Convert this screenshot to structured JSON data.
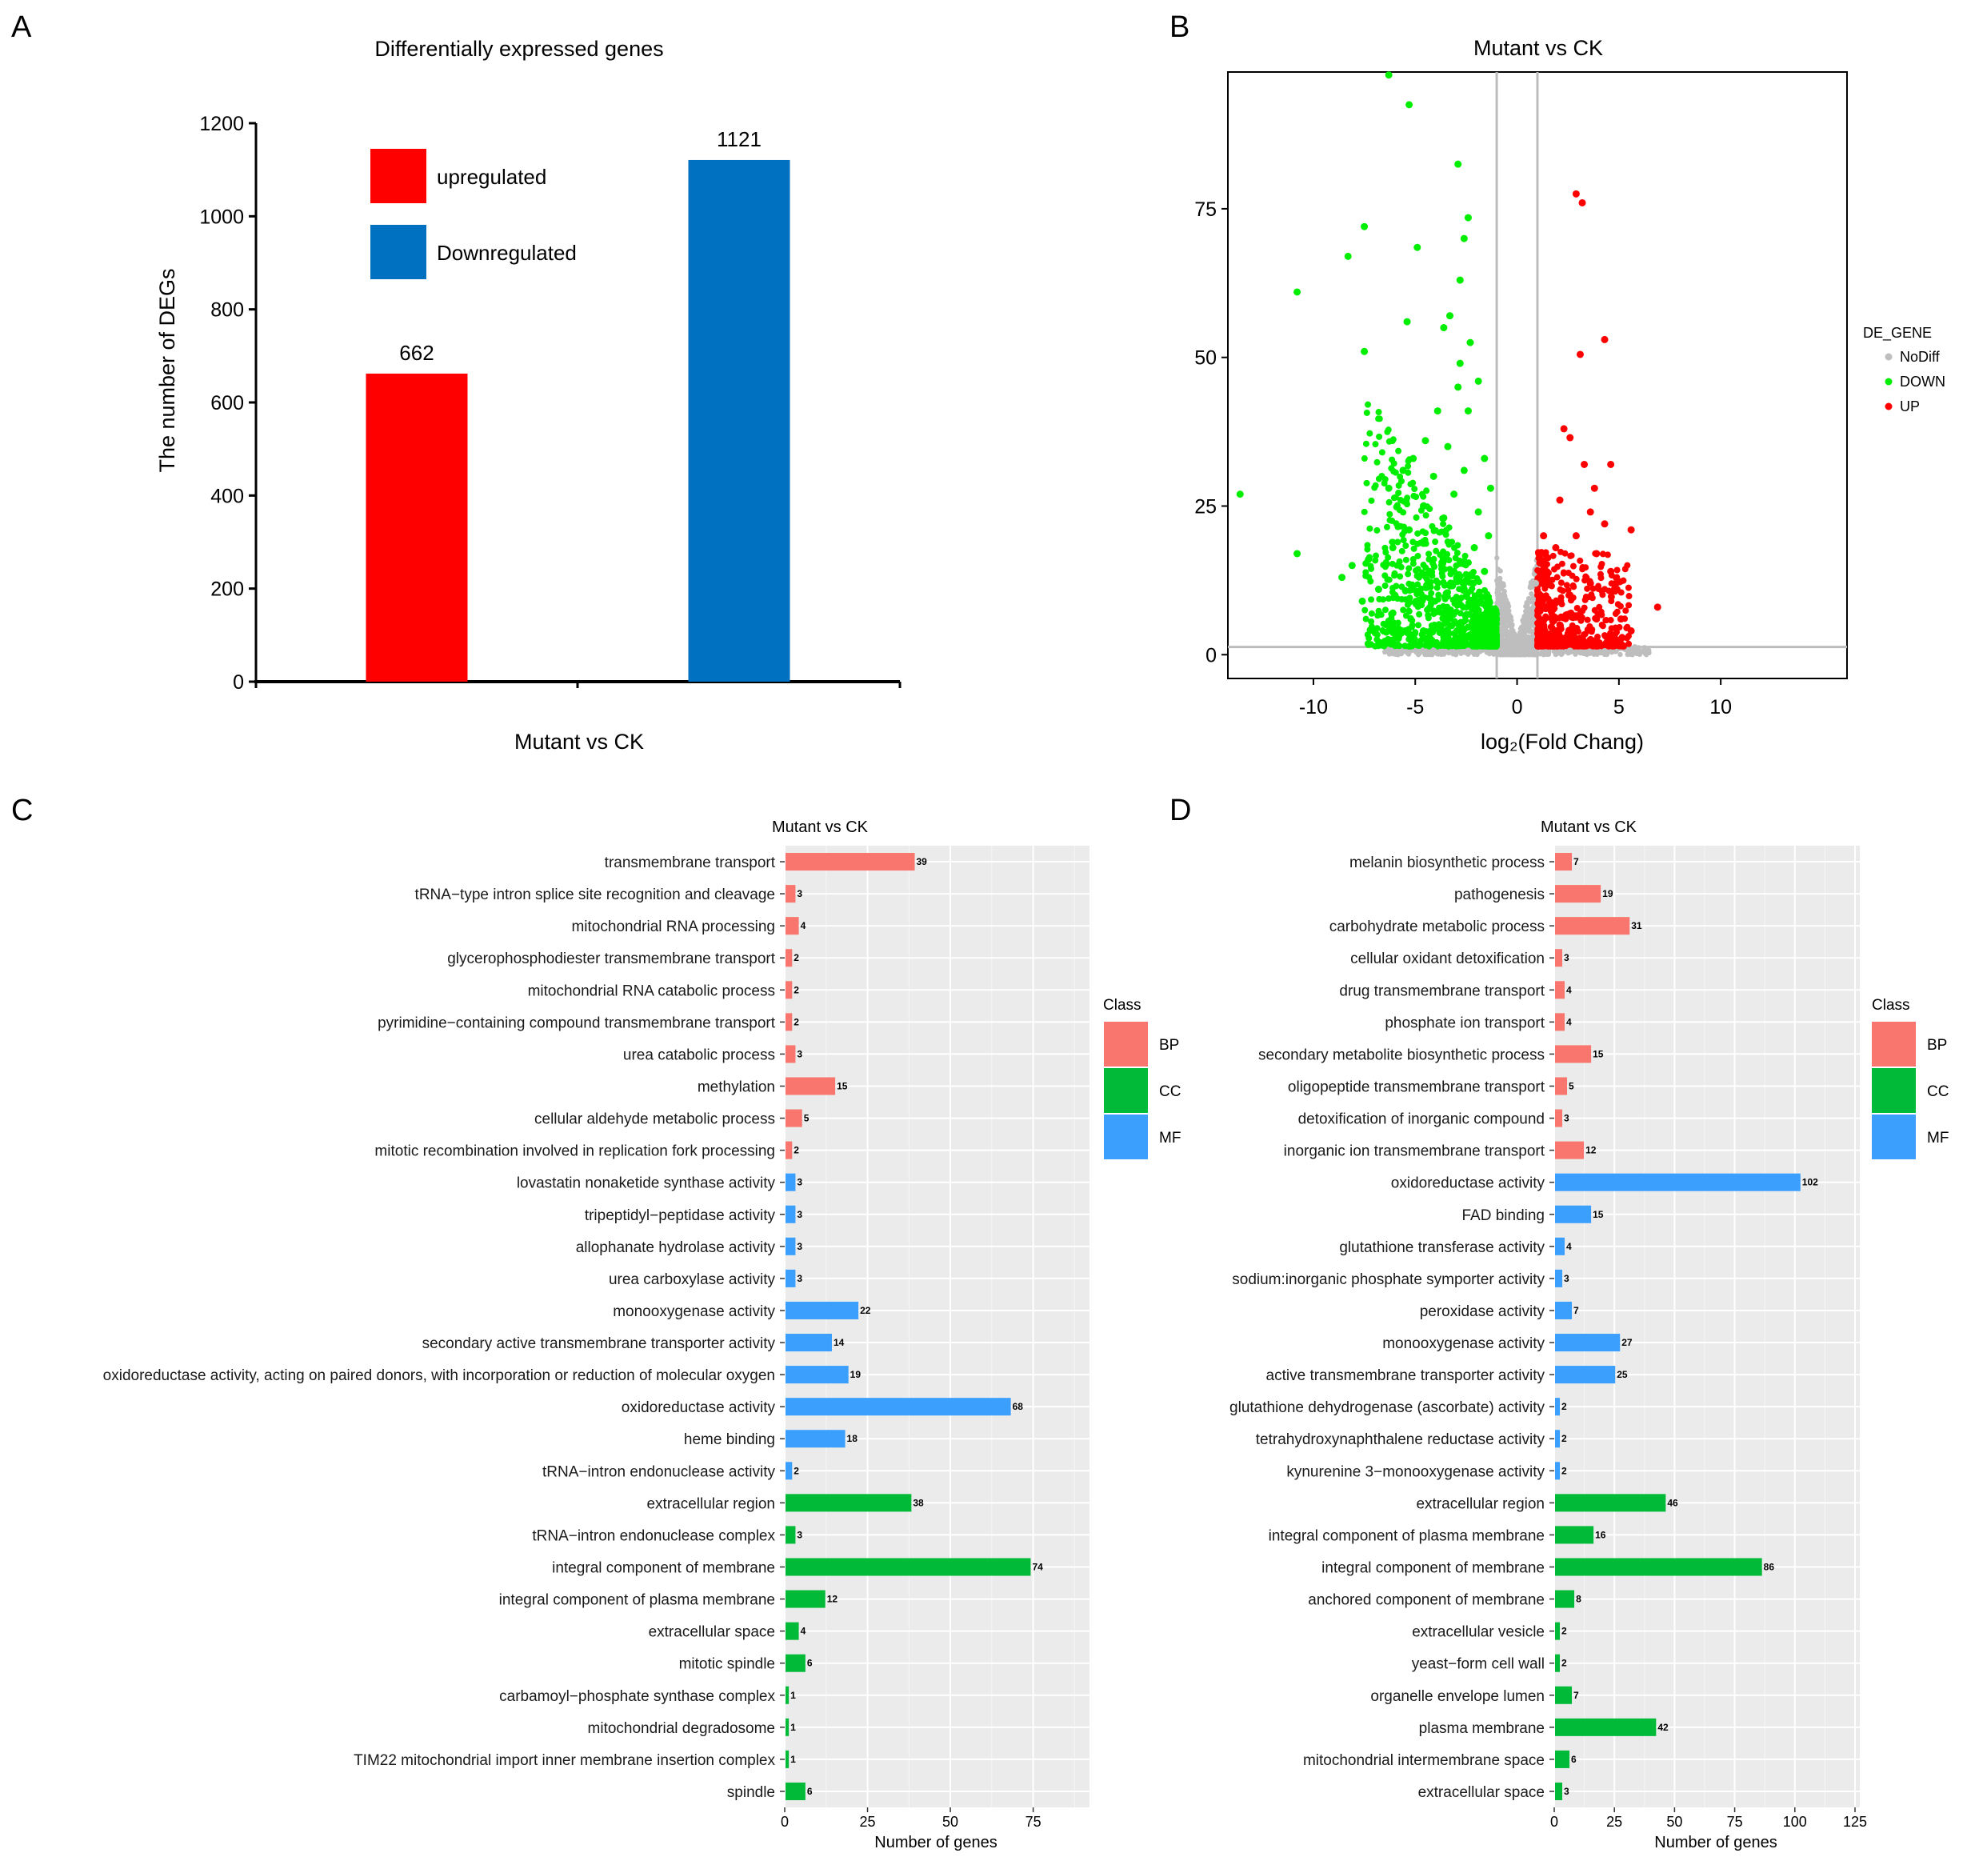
{
  "panels": {
    "a": {
      "label": "A"
    },
    "b": {
      "label": "B"
    },
    "c": {
      "label": "C"
    },
    "d": {
      "label": "D"
    }
  },
  "chart_data": [
    {
      "id": "a",
      "type": "bar",
      "title": "Differentially expressed genes",
      "xlabel": "Mutant vs CK",
      "ylabel": "The number of DEGs",
      "ylim": [
        0,
        1200
      ],
      "yticks": [
        0,
        200,
        400,
        600,
        800,
        1000,
        1200
      ],
      "categories": [
        "upregulated",
        "Downregulated"
      ],
      "values": [
        662,
        1121
      ],
      "colors": [
        "#ff0000",
        "#0070c0"
      ],
      "legend": [
        {
          "name": "upregulated",
          "color": "#ff0000"
        },
        {
          "name": "Downregulated",
          "color": "#0070c0"
        }
      ],
      "legend_position": "top-left"
    },
    {
      "id": "b",
      "type": "scatter",
      "title": "Mutant vs CK",
      "xlabel": "log₂(Fold Chang)",
      "ylabel": "",
      "xlim": [
        -14.2,
        16.2
      ],
      "ylim": [
        -4,
        98
      ],
      "xticks": [
        -10,
        -5,
        0,
        5,
        10
      ],
      "yticks": [
        0,
        25,
        50,
        75
      ],
      "threshold_lines": {
        "x": [
          -1,
          1
        ],
        "y": 1.3
      },
      "legend_title": "DE_GENE",
      "legend_position": "right",
      "series": [
        {
          "name": "NoDiff",
          "color": "#bebebe",
          "points": [
            [
              -0.9,
              10
            ],
            [
              -0.6,
              6
            ],
            [
              -0.3,
              2
            ],
            [
              0,
              1
            ],
            [
              0.3,
              2
            ],
            [
              0.6,
              7
            ],
            [
              0.9,
              12
            ],
            [
              -2.4,
              0.6
            ],
            [
              -4.1,
              0.6
            ],
            [
              2.6,
              0.6
            ],
            [
              4.3,
              0.5
            ]
          ]
        },
        {
          "name": "DOWN",
          "color": "#00ee00",
          "points": [
            [
              -6.3,
              97.5
            ],
            [
              -5.3,
              92.5
            ],
            [
              -2.9,
              82.5
            ],
            [
              -2.4,
              73.5
            ],
            [
              -2.6,
              70
            ],
            [
              -4.9,
              68.5
            ],
            [
              -7.5,
              72
            ],
            [
              -8.3,
              67
            ],
            [
              -10.8,
              61
            ],
            [
              -2.8,
              63
            ],
            [
              -7.5,
              51
            ],
            [
              -5.4,
              56
            ],
            [
              -13.6,
              27
            ],
            [
              -10.8,
              17
            ],
            [
              -3.6,
              55
            ],
            [
              -3.3,
              57
            ],
            [
              -2.3,
              52.5
            ],
            [
              -2.8,
              49
            ],
            [
              -1.9,
              46
            ],
            [
              -3.9,
              41
            ],
            [
              -4.5,
              36
            ],
            [
              -2.4,
              41
            ],
            [
              -5.1,
              33
            ],
            [
              -5.6,
              31
            ],
            [
              -6.3,
              28
            ],
            [
              -4.6,
              25
            ],
            [
              -6.1,
              18
            ],
            [
              -7.3,
              16
            ],
            [
              -8.1,
              15
            ],
            [
              -8.6,
              13
            ],
            [
              -7.6,
              9
            ],
            [
              -6.8,
              11
            ],
            [
              -5.3,
              21
            ],
            [
              -4.6,
              19
            ],
            [
              -3.6,
              23
            ],
            [
              -3.1,
              27
            ],
            [
              -2.6,
              31
            ],
            [
              -1.6,
              33
            ],
            [
              -1.3,
              28
            ],
            [
              -1.4,
              20
            ],
            [
              -1.6,
              14
            ],
            [
              -1.4,
              8
            ],
            [
              -1.3,
              4
            ],
            [
              -2.1,
              6
            ],
            [
              -3.1,
              7
            ],
            [
              -4.1,
              9
            ],
            [
              -3.1,
              14
            ],
            [
              -2.1,
              18
            ],
            [
              -5.1,
              11
            ],
            [
              -6.1,
              7
            ],
            [
              -4.6,
              4
            ],
            [
              -3.6,
              3
            ],
            [
              -2.6,
              11
            ],
            [
              -1.9,
              24
            ],
            [
              -4.1,
              30
            ],
            [
              -3.4,
              35
            ],
            [
              -2.9,
              45
            ]
          ]
        },
        {
          "name": "UP",
          "color": "#ff0000",
          "points": [
            [
              2.9,
              77.5
            ],
            [
              3.2,
              76
            ],
            [
              4.3,
              53
            ],
            [
              3.1,
              50.5
            ],
            [
              2.3,
              38
            ],
            [
              2.6,
              36.5
            ],
            [
              3.3,
              32
            ],
            [
              4.6,
              32
            ],
            [
              3.8,
              28
            ],
            [
              2.1,
              26
            ],
            [
              3.6,
              24
            ],
            [
              4.3,
              22
            ],
            [
              5.6,
              21
            ],
            [
              6.9,
              8
            ],
            [
              5.6,
              4
            ],
            [
              2.1,
              5
            ],
            [
              1.6,
              8
            ],
            [
              2.6,
              10
            ],
            [
              3.6,
              12
            ],
            [
              4.6,
              14
            ],
            [
              1.3,
              15
            ],
            [
              1.9,
              18
            ],
            [
              2.9,
              20
            ],
            [
              3.9,
              17
            ],
            [
              4.9,
              11
            ],
            [
              1.6,
              3
            ],
            [
              2.6,
              3
            ],
            [
              3.9,
              6
            ],
            [
              5.1,
              6
            ],
            [
              1.3,
              20
            ]
          ]
        }
      ]
    },
    {
      "id": "c",
      "type": "bar",
      "orientation": "horizontal",
      "title": "Mutant vs CK",
      "xlabel": "Number of genes",
      "ylabel": "",
      "xlim": [
        0,
        92
      ],
      "xticks": [
        0,
        25,
        50,
        75
      ],
      "legend_title": "Class",
      "legend_position": "right",
      "legend": [
        {
          "name": "BP",
          "color": "#f8766d"
        },
        {
          "name": "CC",
          "color": "#00ba38"
        },
        {
          "name": "MF",
          "color": "#3ba0fd"
        }
      ],
      "bars": [
        {
          "term": "transmembrane transport",
          "value": 39,
          "class": "BP"
        },
        {
          "term": "tRNA−type intron splice site recognition and cleavage",
          "value": 3,
          "class": "BP"
        },
        {
          "term": "mitochondrial RNA processing",
          "value": 4,
          "class": "BP"
        },
        {
          "term": "glycerophosphodiester transmembrane transport",
          "value": 2,
          "class": "BP"
        },
        {
          "term": "mitochondrial RNA catabolic process",
          "value": 2,
          "class": "BP"
        },
        {
          "term": "pyrimidine−containing compound transmembrane transport",
          "value": 2,
          "class": "BP"
        },
        {
          "term": "urea catabolic process",
          "value": 3,
          "class": "BP"
        },
        {
          "term": "methylation",
          "value": 15,
          "class": "BP"
        },
        {
          "term": "cellular aldehyde metabolic process",
          "value": 5,
          "class": "BP"
        },
        {
          "term": "mitotic recombination involved in replication fork processing",
          "value": 2,
          "class": "BP"
        },
        {
          "term": "lovastatin nonaketide synthase activity",
          "value": 3,
          "class": "MF"
        },
        {
          "term": "tripeptidyl−peptidase activity",
          "value": 3,
          "class": "MF"
        },
        {
          "term": "allophanate hydrolase activity",
          "value": 3,
          "class": "MF"
        },
        {
          "term": "urea carboxylase activity",
          "value": 3,
          "class": "MF"
        },
        {
          "term": "monooxygenase activity",
          "value": 22,
          "class": "MF"
        },
        {
          "term": "secondary active transmembrane transporter activity",
          "value": 14,
          "class": "MF"
        },
        {
          "term": "oxidoreductase activity, acting on paired donors, with incorporation or reduction of molecular oxygen",
          "value": 19,
          "class": "MF"
        },
        {
          "term": "oxidoreductase activity",
          "value": 68,
          "class": "MF"
        },
        {
          "term": "heme binding",
          "value": 18,
          "class": "MF"
        },
        {
          "term": "tRNA−intron endonuclease activity",
          "value": 2,
          "class": "MF"
        },
        {
          "term": "extracellular region",
          "value": 38,
          "class": "CC"
        },
        {
          "term": "tRNA−intron endonuclease complex",
          "value": 3,
          "class": "CC"
        },
        {
          "term": "integral component of membrane",
          "value": 74,
          "class": "CC"
        },
        {
          "term": "integral component of plasma membrane",
          "value": 12,
          "class": "CC"
        },
        {
          "term": "extracellular space",
          "value": 4,
          "class": "CC"
        },
        {
          "term": "mitotic spindle",
          "value": 6,
          "class": "CC"
        },
        {
          "term": "carbamoyl−phosphate synthase complex",
          "value": 1,
          "class": "CC"
        },
        {
          "term": "mitochondrial degradosome",
          "value": 1,
          "class": "CC"
        },
        {
          "term": "TIM22 mitochondrial import inner membrane insertion complex",
          "value": 1,
          "class": "CC"
        },
        {
          "term": "spindle",
          "value": 6,
          "class": "CC"
        }
      ]
    },
    {
      "id": "d",
      "type": "bar",
      "orientation": "horizontal",
      "title": "Mutant vs CK",
      "xlabel": "Number of genes",
      "ylabel": "",
      "xlim": [
        0,
        127
      ],
      "xticks": [
        0,
        25,
        50,
        75,
        100,
        125
      ],
      "legend_title": "Class",
      "legend_position": "right",
      "legend": [
        {
          "name": "BP",
          "color": "#f8766d"
        },
        {
          "name": "CC",
          "color": "#00ba38"
        },
        {
          "name": "MF",
          "color": "#3ba0fd"
        }
      ],
      "bars": [
        {
          "term": "melanin biosynthetic process",
          "value": 7,
          "class": "BP"
        },
        {
          "term": "pathogenesis",
          "value": 19,
          "class": "BP"
        },
        {
          "term": "carbohydrate metabolic process",
          "value": 31,
          "class": "BP"
        },
        {
          "term": "cellular oxidant detoxification",
          "value": 3,
          "class": "BP"
        },
        {
          "term": "drug transmembrane transport",
          "value": 4,
          "class": "BP"
        },
        {
          "term": "phosphate ion transport",
          "value": 4,
          "class": "BP"
        },
        {
          "term": "secondary metabolite biosynthetic process",
          "value": 15,
          "class": "BP"
        },
        {
          "term": "oligopeptide transmembrane transport",
          "value": 5,
          "class": "BP"
        },
        {
          "term": "detoxification of inorganic compound",
          "value": 3,
          "class": "BP"
        },
        {
          "term": "inorganic ion transmembrane transport",
          "value": 12,
          "class": "BP"
        },
        {
          "term": "oxidoreductase activity",
          "value": 102,
          "class": "MF"
        },
        {
          "term": "FAD binding",
          "value": 15,
          "class": "MF"
        },
        {
          "term": "glutathione transferase activity",
          "value": 4,
          "class": "MF"
        },
        {
          "term": "sodium:inorganic phosphate symporter activity",
          "value": 3,
          "class": "MF"
        },
        {
          "term": "peroxidase activity",
          "value": 7,
          "class": "MF"
        },
        {
          "term": "monooxygenase activity",
          "value": 27,
          "class": "MF"
        },
        {
          "term": "active transmembrane transporter activity",
          "value": 25,
          "class": "MF"
        },
        {
          "term": "glutathione dehydrogenase (ascorbate) activity",
          "value": 2,
          "class": "MF"
        },
        {
          "term": "tetrahydroxynaphthalene reductase activity",
          "value": 2,
          "class": "MF"
        },
        {
          "term": "kynurenine 3−monooxygenase activity",
          "value": 2,
          "class": "MF"
        },
        {
          "term": "extracellular region",
          "value": 46,
          "class": "CC"
        },
        {
          "term": "integral component of plasma membrane",
          "value": 16,
          "class": "CC"
        },
        {
          "term": "integral component of membrane",
          "value": 86,
          "class": "CC"
        },
        {
          "term": "anchored component of membrane",
          "value": 8,
          "class": "CC"
        },
        {
          "term": "extracellular vesicle",
          "value": 2,
          "class": "CC"
        },
        {
          "term": "yeast−form cell wall",
          "value": 2,
          "class": "CC"
        },
        {
          "term": "organelle envelope lumen",
          "value": 7,
          "class": "CC"
        },
        {
          "term": "plasma membrane",
          "value": 42,
          "class": "CC"
        },
        {
          "term": "mitochondrial intermembrane space",
          "value": 6,
          "class": "CC"
        },
        {
          "term": "extracellular space",
          "value": 3,
          "class": "CC"
        }
      ]
    }
  ]
}
